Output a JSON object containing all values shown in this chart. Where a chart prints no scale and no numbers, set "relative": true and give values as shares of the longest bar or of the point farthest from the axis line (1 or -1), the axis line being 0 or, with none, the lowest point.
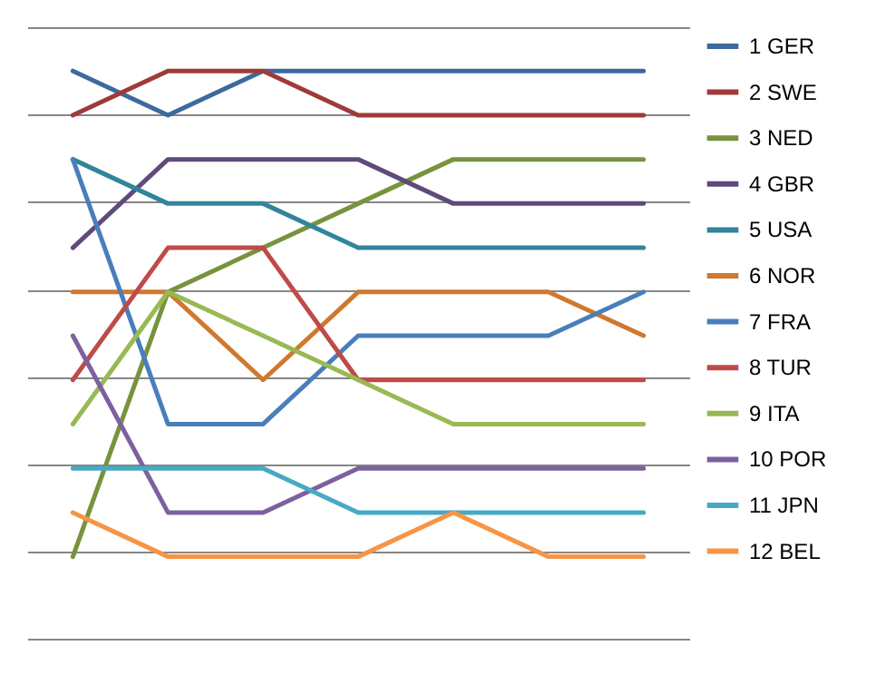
{
  "chart_data": {
    "type": "line",
    "relative": true,
    "categories": [
      null,
      null,
      null,
      null,
      null,
      null,
      null
    ],
    "grid": "y",
    "legend": "right",
    "line_style": "solid",
    "marker": "none",
    "series": [
      {
        "name": "1 GER",
        "color": "#3d6a9e",
        "values": [
          1,
          0.909,
          1,
          1,
          1,
          1,
          1
        ]
      },
      {
        "name": "2 SWE",
        "color": "#9e3b39",
        "values": [
          0.909,
          1,
          1,
          0.909,
          0.909,
          0.909,
          0.909
        ]
      },
      {
        "name": "3 NED",
        "color": "#77933c",
        "values": [
          0,
          0.545,
          0.636,
          0.727,
          0.818,
          0.818,
          0.818
        ]
      },
      {
        "name": "4 GBR",
        "color": "#604a7b",
        "values": [
          0.636,
          0.818,
          0.818,
          0.818,
          0.727,
          0.727,
          0.727
        ]
      },
      {
        "name": "5 USA",
        "color": "#31849b",
        "values": [
          0.818,
          0.727,
          0.727,
          0.636,
          0.636,
          0.636,
          0.636
        ]
      },
      {
        "name": "6 NOR",
        "color": "#d0782d",
        "values": [
          0.545,
          0.545,
          0.364,
          0.545,
          0.545,
          0.545,
          0.455
        ]
      },
      {
        "name": "7 FRA",
        "color": "#4a7ebb",
        "values": [
          0.818,
          0.273,
          0.273,
          0.455,
          0.455,
          0.455,
          0.545
        ]
      },
      {
        "name": "8 TUR",
        "color": "#be4b48",
        "values": [
          0.364,
          0.636,
          0.636,
          0.364,
          0.364,
          0.364,
          0.364
        ]
      },
      {
        "name": "9 ITA",
        "color": "#98b954",
        "values": [
          0.273,
          0.545,
          0.455,
          0.364,
          0.273,
          0.273,
          0.273
        ]
      },
      {
        "name": "10 POR",
        "color": "#7d60a0",
        "values": [
          0.455,
          0.091,
          0.091,
          0.182,
          0.182,
          0.182,
          0.182
        ]
      },
      {
        "name": "11 JPN",
        "color": "#46aac5",
        "values": [
          0.182,
          0.182,
          0.182,
          0.091,
          0.091,
          0.091,
          0.091
        ]
      },
      {
        "name": "12 BEL",
        "color": "#f69546",
        "values": [
          0.091,
          0,
          0,
          0,
          0.091,
          0,
          0
        ]
      }
    ]
  }
}
